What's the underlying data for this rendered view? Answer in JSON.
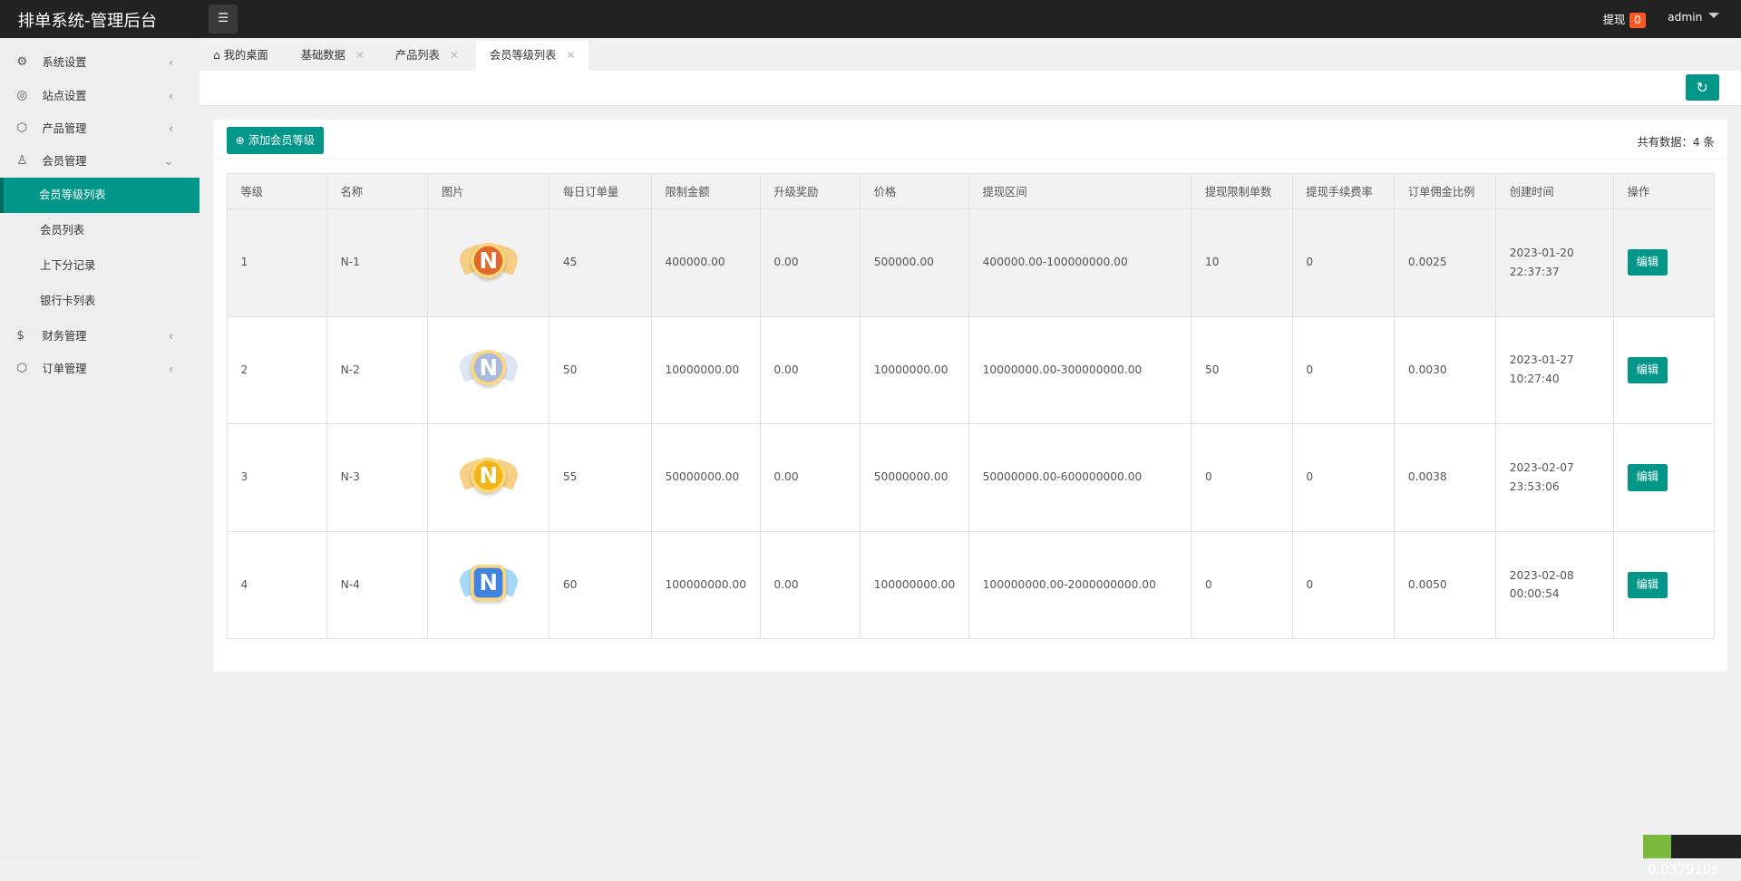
{
  "app": {
    "title": "排单系统-管理后台",
    "withdraw_label": "提现",
    "withdraw_count": "0",
    "user": "admin"
  },
  "sidebar": {
    "items": [
      {
        "label": "系统设置",
        "icon": "gear-icon"
      },
      {
        "label": "站点设置",
        "icon": "globe-icon"
      },
      {
        "label": "产品管理",
        "icon": "box-icon"
      },
      {
        "label": "会员管理",
        "icon": "user-icon",
        "expanded": true,
        "children": [
          {
            "label": "会员等级列表",
            "active": true
          },
          {
            "label": "会员列表"
          },
          {
            "label": "上下分记录"
          },
          {
            "label": "银行卡列表"
          }
        ]
      },
      {
        "label": "财务管理",
        "icon": "dollar-icon"
      },
      {
        "label": "订单管理",
        "icon": "box-icon"
      }
    ]
  },
  "tabs": [
    {
      "label": "我的桌面"
    },
    {
      "label": "基础数据"
    },
    {
      "label": "产品列表"
    },
    {
      "label": "会员等级列表",
      "active": true
    }
  ],
  "main": {
    "add_label": "添加会员等级",
    "total_label": "共有数据：4 条",
    "columns": [
      "等级",
      "名称",
      "图片",
      "每日订单量",
      "限制金额",
      "升级奖励",
      "价格",
      "提现区间",
      "提现限制单数",
      "提现手续费率",
      "订单佣金比例",
      "创建时间",
      "操作"
    ],
    "rows": [
      {
        "level": "1",
        "name": "N-1",
        "daily": "45",
        "limit": "400000.00",
        "reward": "0.00",
        "price": "500000.00",
        "range": "400000.00-100000000.00",
        "wcount": "10",
        "fee": "0",
        "commission": "0.0025",
        "created": "2023-01-20 22:37:37",
        "action": "编辑",
        "color": "#e06a2c"
      },
      {
        "level": "2",
        "name": "N-2",
        "daily": "50",
        "limit": "10000000.00",
        "reward": "0.00",
        "price": "10000000.00",
        "range": "10000000.00-300000000.00",
        "wcount": "50",
        "fee": "0",
        "commission": "0.0030",
        "created": "2023-01-27 10:27:40",
        "action": "编辑",
        "color": "#a9b9de"
      },
      {
        "level": "3",
        "name": "N-3",
        "daily": "55",
        "limit": "50000000.00",
        "reward": "0.00",
        "price": "50000000.00",
        "range": "50000000.00-600000000.00",
        "wcount": "0",
        "fee": "0",
        "commission": "0.0038",
        "created": "2023-02-07 23:53:06",
        "action": "编辑",
        "color": "#f2b516"
      },
      {
        "level": "4",
        "name": "N-4",
        "daily": "60",
        "limit": "100000000.00",
        "reward": "0.00",
        "price": "100000000.00",
        "range": "100000000.00-2000000000.00",
        "wcount": "0",
        "fee": "0",
        "commission": "0.0050",
        "created": "2023-02-08 00:00:54",
        "action": "编辑",
        "color": "#3f82e0"
      }
    ]
  },
  "perf": "0.037910s",
  "colors": {
    "accent": "#009688",
    "header": "#222222",
    "badge": "#ff5722"
  }
}
